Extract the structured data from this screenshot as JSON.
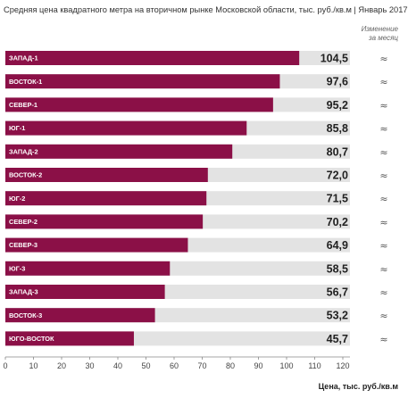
{
  "chart_data": {
    "type": "bar",
    "orientation": "horizontal",
    "title": "Средняя цена квадратного метра на вторичном рынке Московской области, тыс. руб./кв.м | Январь 2017",
    "change_header_line1": "Изменение",
    "change_header_line2": "за месяц",
    "categories": [
      "ЗАПАД-1",
      "ВОСТОК-1",
      "СЕВЕР-1",
      "ЮГ-1",
      "ЗАПАД-2",
      "ВОСТОК-2",
      "ЮГ-2",
      "СЕВЕР-2",
      "СЕВЕР-3",
      "ЮГ-3",
      "ЗАПАД-3",
      "ВОСТОК-3",
      "ЮГО-ВОСТОК"
    ],
    "values": [
      104.5,
      97.6,
      95.2,
      85.8,
      80.7,
      72.0,
      71.5,
      70.2,
      64.9,
      58.5,
      56.7,
      53.2,
      45.7
    ],
    "value_labels": [
      "104,5",
      "97,6",
      "95,2",
      "85,8",
      "80,7",
      "72,0",
      "71,5",
      "70,2",
      "64,9",
      "58,5",
      "56,7",
      "53,2",
      "45,7"
    ],
    "change_symbols": [
      "≈",
      "≈",
      "≈",
      "≈",
      "≈",
      "≈",
      "≈",
      "≈",
      "≈",
      "≈",
      "≈",
      "≈",
      "≈"
    ],
    "xlabel": "Цена, тыс. руб./кв.м",
    "xlim": [
      0,
      120
    ],
    "xticks": [
      "0",
      "10",
      "20",
      "30",
      "40",
      "50",
      "60",
      "70",
      "80",
      "90",
      "100",
      "110",
      "120"
    ],
    "bar_color": "#8b1047",
    "track_color": "#e3e3e3"
  }
}
